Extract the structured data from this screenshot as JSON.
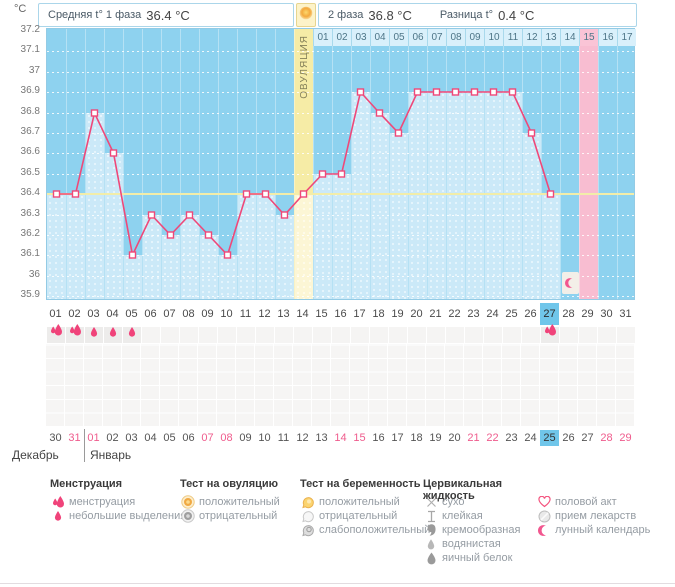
{
  "header": {
    "unit": "°C",
    "phase1_label": "Средняя t° 1 фаза",
    "phase1_value": "36.4 °C",
    "phase2_label": "2 фаза",
    "phase2_value": "36.8 °C",
    "diff_label": "Разница t°",
    "diff_value": "0.4 °C"
  },
  "chart_data": {
    "type": "line",
    "title": "Basal body temperature cycle chart",
    "ylabel": "°C",
    "ylim": [
      35.9,
      37.2
    ],
    "yticks": [
      "37.2",
      "37.1",
      "37",
      "36.9",
      "36.8",
      "36.7",
      "36.6",
      "36.5",
      "36.4",
      "36.3",
      "36.2",
      "36.1",
      "36",
      "35.9"
    ],
    "categories": [
      "01",
      "02",
      "03",
      "04",
      "05",
      "06",
      "07",
      "08",
      "09",
      "10",
      "11",
      "12",
      "13",
      "14",
      "15",
      "16",
      "17",
      "18",
      "19",
      "20",
      "21",
      "22",
      "23",
      "24",
      "25",
      "26",
      "27",
      "28",
      "29",
      "30",
      "31"
    ],
    "values": [
      36.4,
      36.4,
      36.8,
      36.6,
      36.1,
      36.3,
      36.2,
      36.3,
      36.2,
      36.1,
      36.4,
      36.4,
      36.3,
      36.4,
      36.5,
      36.5,
      36.9,
      36.8,
      36.7,
      36.9,
      36.9,
      36.9,
      36.9,
      36.9,
      36.9,
      36.7,
      36.4,
      null,
      null,
      null,
      null
    ],
    "coverline": 36.4,
    "ovulation_day": "14",
    "ovulation_label": "ОВУЛЯЦИЯ",
    "dpo_labels": [
      "01",
      "02",
      "03",
      "04",
      "05",
      "06",
      "07",
      "08",
      "09",
      "10",
      "11",
      "12",
      "13",
      "14",
      "15",
      "16",
      "17"
    ],
    "dpo_highlighted": "15",
    "pink_column_day": "29",
    "moon_marker_day": "28",
    "grid": true,
    "legend_position": "bottom"
  },
  "cycle_days": {
    "labels": [
      "01",
      "02",
      "03",
      "04",
      "05",
      "06",
      "07",
      "08",
      "09",
      "10",
      "11",
      "12",
      "13",
      "14",
      "15",
      "16",
      "17",
      "18",
      "19",
      "20",
      "21",
      "22",
      "23",
      "24",
      "25",
      "26",
      "27",
      "28",
      "29",
      "30",
      "31"
    ],
    "today": "27"
  },
  "menstruation_row": {
    "heavy_days": [
      "01",
      "02",
      "27"
    ],
    "light_days": [
      "03",
      "04",
      "05"
    ]
  },
  "calendar": {
    "dates": [
      "30",
      "31",
      "01",
      "02",
      "03",
      "04",
      "05",
      "06",
      "07",
      "08",
      "09",
      "10",
      "11",
      "12",
      "13",
      "14",
      "15",
      "16",
      "17",
      "18",
      "19",
      "20",
      "21",
      "22",
      "23",
      "24",
      "25",
      "26",
      "27",
      "28",
      "29"
    ],
    "weekend_dates": [
      "31",
      "01",
      "07",
      "08",
      "14",
      "15",
      "21",
      "22",
      "28",
      "29"
    ],
    "today": "25",
    "month_left": "Декабрь",
    "month_right": "Январь"
  },
  "legend": {
    "columns": [
      {
        "title": "Менструация",
        "items": [
          {
            "icon": "drop-heavy-icon",
            "label": "менструация"
          },
          {
            "icon": "drop-light-icon",
            "label": "небольшие выделения"
          }
        ]
      },
      {
        "title": "Тест на овуляцию",
        "items": [
          {
            "icon": "ovulation-positive-icon",
            "label": "положительный"
          },
          {
            "icon": "ovulation-negative-icon",
            "label": "отрицательный"
          }
        ]
      },
      {
        "title": "Тест на беременность",
        "items": [
          {
            "icon": "pregnancy-positive-icon",
            "label": "положительный"
          },
          {
            "icon": "pregnancy-negative-icon",
            "label": "отрицательный"
          },
          {
            "icon": "pregnancy-weak-icon",
            "label": "слабоположительный"
          }
        ]
      },
      {
        "title": "Цервикальная жидкость",
        "items": [
          {
            "icon": "dry-icon",
            "label": "сухо"
          },
          {
            "icon": "sticky-icon",
            "label": "клейкая"
          },
          {
            "icon": "creamy-icon",
            "label": "кремообразная"
          },
          {
            "icon": "watery-icon",
            "label": "водянистая"
          },
          {
            "icon": "eggwhite-icon",
            "label": "яичный белок"
          }
        ]
      },
      {
        "title": "",
        "items": [
          {
            "icon": "heart-icon",
            "label": "половой акт"
          },
          {
            "icon": "pills-icon",
            "label": "прием лекарств"
          },
          {
            "icon": "moon-icon",
            "label": "лунный календарь"
          }
        ]
      }
    ]
  },
  "colors": {
    "chart_bg": "#8ed2ef",
    "recorded_fill": "#cbe9f8",
    "ovulation_yellow": "#f6eca6",
    "pink_column": "#f8bdd1",
    "line_pink": "#ef4879",
    "coverline_yellow": "#f2eda9",
    "today_highlight": "#70c6ea",
    "weekend_red": "#ef5c8d"
  }
}
